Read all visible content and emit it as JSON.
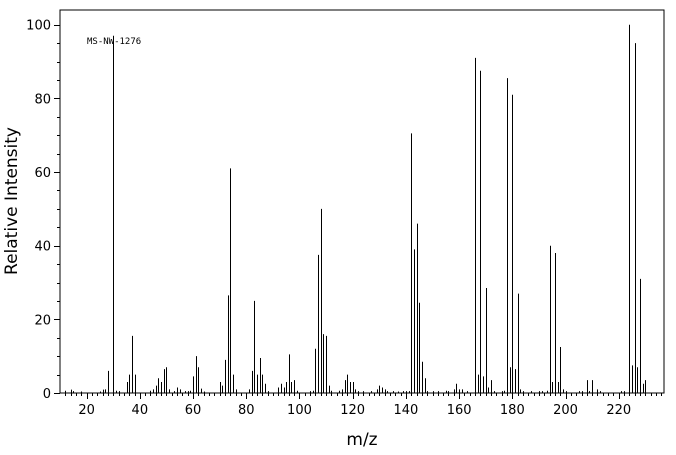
{
  "chart_data": {
    "type": "bar",
    "title": "",
    "annotation": "MS-NW-1276",
    "xlabel": "m/z",
    "ylabel": "Relative Intensity",
    "xlim": [
      10,
      237
    ],
    "ylim": [
      0,
      104
    ],
    "xticks": [
      20,
      40,
      60,
      80,
      100,
      120,
      140,
      160,
      180,
      200,
      220
    ],
    "yticks": [
      0,
      20,
      40,
      60,
      80,
      100
    ],
    "grid": false,
    "legend": "none",
    "peaks": [
      {
        "x": 12,
        "y": 0.6
      },
      {
        "x": 14,
        "y": 0.9
      },
      {
        "x": 15,
        "y": 0.5
      },
      {
        "x": 18,
        "y": 0.4
      },
      {
        "x": 25,
        "y": 0.4
      },
      {
        "x": 26,
        "y": 0.9
      },
      {
        "x": 27,
        "y": 1.0
      },
      {
        "x": 28,
        "y": 6.0
      },
      {
        "x": 30,
        "y": 97.0
      },
      {
        "x": 31,
        "y": 0.6
      },
      {
        "x": 32,
        "y": 0.5
      },
      {
        "x": 35,
        "y": 3.0
      },
      {
        "x": 36,
        "y": 5.0
      },
      {
        "x": 37,
        "y": 15.5
      },
      {
        "x": 38,
        "y": 5.0
      },
      {
        "x": 44,
        "y": 0.6
      },
      {
        "x": 45,
        "y": 1.0
      },
      {
        "x": 46,
        "y": 2.0
      },
      {
        "x": 47,
        "y": 4.0
      },
      {
        "x": 48,
        "y": 3.0
      },
      {
        "x": 49,
        "y": 6.5
      },
      {
        "x": 50,
        "y": 7.0
      },
      {
        "x": 51,
        "y": 1.0
      },
      {
        "x": 53,
        "y": 0.5
      },
      {
        "x": 54,
        "y": 1.5
      },
      {
        "x": 55,
        "y": 1.0
      },
      {
        "x": 57,
        "y": 0.5
      },
      {
        "x": 58,
        "y": 0.5
      },
      {
        "x": 59,
        "y": 0.6
      },
      {
        "x": 60,
        "y": 4.5
      },
      {
        "x": 61,
        "y": 10.0
      },
      {
        "x": 62,
        "y": 7.0
      },
      {
        "x": 63,
        "y": 1.2
      },
      {
        "x": 64,
        "y": 0.4
      },
      {
        "x": 70,
        "y": 3.0
      },
      {
        "x": 71,
        "y": 2.0
      },
      {
        "x": 72,
        "y": 9.0
      },
      {
        "x": 73,
        "y": 26.5
      },
      {
        "x": 74,
        "y": 61.0
      },
      {
        "x": 75,
        "y": 5.0
      },
      {
        "x": 76,
        "y": 1.0
      },
      {
        "x": 81,
        "y": 1.0
      },
      {
        "x": 82,
        "y": 6.0
      },
      {
        "x": 83,
        "y": 25.0
      },
      {
        "x": 84,
        "y": 5.0
      },
      {
        "x": 85,
        "y": 9.5
      },
      {
        "x": 86,
        "y": 5.0
      },
      {
        "x": 87,
        "y": 2.5
      },
      {
        "x": 88,
        "y": 0.5
      },
      {
        "x": 92,
        "y": 1.5
      },
      {
        "x": 93,
        "y": 2.5
      },
      {
        "x": 94,
        "y": 1.5
      },
      {
        "x": 95,
        "y": 3.0
      },
      {
        "x": 96,
        "y": 10.5
      },
      {
        "x": 97,
        "y": 3.0
      },
      {
        "x": 98,
        "y": 3.5
      },
      {
        "x": 99,
        "y": 0.6
      },
      {
        "x": 104,
        "y": 0.5
      },
      {
        "x": 105,
        "y": 0.6
      },
      {
        "x": 106,
        "y": 12.0
      },
      {
        "x": 107,
        "y": 37.5
      },
      {
        "x": 108,
        "y": 50.0
      },
      {
        "x": 109,
        "y": 16.0
      },
      {
        "x": 110,
        "y": 15.5
      },
      {
        "x": 111,
        "y": 2.0
      },
      {
        "x": 112,
        "y": 0.6
      },
      {
        "x": 115,
        "y": 0.6
      },
      {
        "x": 116,
        "y": 1.0
      },
      {
        "x": 117,
        "y": 3.5
      },
      {
        "x": 118,
        "y": 5.0
      },
      {
        "x": 119,
        "y": 3.0
      },
      {
        "x": 120,
        "y": 3.0
      },
      {
        "x": 121,
        "y": 1.0
      },
      {
        "x": 122,
        "y": 0.5
      },
      {
        "x": 124,
        "y": 0.5
      },
      {
        "x": 127,
        "y": 0.5
      },
      {
        "x": 129,
        "y": 1.0
      },
      {
        "x": 130,
        "y": 2.0
      },
      {
        "x": 131,
        "y": 1.5
      },
      {
        "x": 132,
        "y": 1.0
      },
      {
        "x": 133,
        "y": 0.5
      },
      {
        "x": 135,
        "y": 0.5
      },
      {
        "x": 137,
        "y": 0.4
      },
      {
        "x": 139,
        "y": 0.5
      },
      {
        "x": 140,
        "y": 0.5
      },
      {
        "x": 141,
        "y": 0.5
      },
      {
        "x": 142,
        "y": 70.5
      },
      {
        "x": 143,
        "y": 39.0
      },
      {
        "x": 144,
        "y": 46.0
      },
      {
        "x": 145,
        "y": 24.5
      },
      {
        "x": 146,
        "y": 8.5
      },
      {
        "x": 147,
        "y": 4.0
      },
      {
        "x": 148,
        "y": 0.5
      },
      {
        "x": 150,
        "y": 0.5
      },
      {
        "x": 152,
        "y": 0.5
      },
      {
        "x": 155,
        "y": 0.6
      },
      {
        "x": 156,
        "y": 0.5
      },
      {
        "x": 158,
        "y": 1.0
      },
      {
        "x": 159,
        "y": 2.5
      },
      {
        "x": 160,
        "y": 1.0
      },
      {
        "x": 161,
        "y": 1.0
      },
      {
        "x": 163,
        "y": 0.5
      },
      {
        "x": 166,
        "y": 91.0
      },
      {
        "x": 167,
        "y": 5.0
      },
      {
        "x": 168,
        "y": 87.5
      },
      {
        "x": 169,
        "y": 4.5
      },
      {
        "x": 170,
        "y": 28.5
      },
      {
        "x": 171,
        "y": 1.5
      },
      {
        "x": 172,
        "y": 3.5
      },
      {
        "x": 173,
        "y": 0.5
      },
      {
        "x": 176,
        "y": 0.5
      },
      {
        "x": 177,
        "y": 0.6
      },
      {
        "x": 178,
        "y": 85.5
      },
      {
        "x": 179,
        "y": 7.0
      },
      {
        "x": 180,
        "y": 81.0
      },
      {
        "x": 181,
        "y": 6.5
      },
      {
        "x": 182,
        "y": 27.0
      },
      {
        "x": 183,
        "y": 1.0
      },
      {
        "x": 184,
        "y": 0.5
      },
      {
        "x": 187,
        "y": 0.5
      },
      {
        "x": 190,
        "y": 0.5
      },
      {
        "x": 191,
        "y": 0.5
      },
      {
        "x": 193,
        "y": 0.6
      },
      {
        "x": 194,
        "y": 40.0
      },
      {
        "x": 195,
        "y": 3.0
      },
      {
        "x": 196,
        "y": 38.0
      },
      {
        "x": 197,
        "y": 3.0
      },
      {
        "x": 198,
        "y": 12.5
      },
      {
        "x": 199,
        "y": 1.0
      },
      {
        "x": 200,
        "y": 0.5
      },
      {
        "x": 205,
        "y": 0.5
      },
      {
        "x": 206,
        "y": 0.5
      },
      {
        "x": 208,
        "y": 3.5
      },
      {
        "x": 209,
        "y": 0.5
      },
      {
        "x": 210,
        "y": 3.5
      },
      {
        "x": 212,
        "y": 1.0
      },
      {
        "x": 213,
        "y": 0.5
      },
      {
        "x": 221,
        "y": 0.5
      },
      {
        "x": 222,
        "y": 0.5
      },
      {
        "x": 224,
        "y": 100.0
      },
      {
        "x": 225,
        "y": 7.5
      },
      {
        "x": 226,
        "y": 95.0
      },
      {
        "x": 227,
        "y": 7.0
      },
      {
        "x": 228,
        "y": 31.0
      },
      {
        "x": 229,
        "y": 2.5
      },
      {
        "x": 230,
        "y": 3.5
      }
    ]
  }
}
